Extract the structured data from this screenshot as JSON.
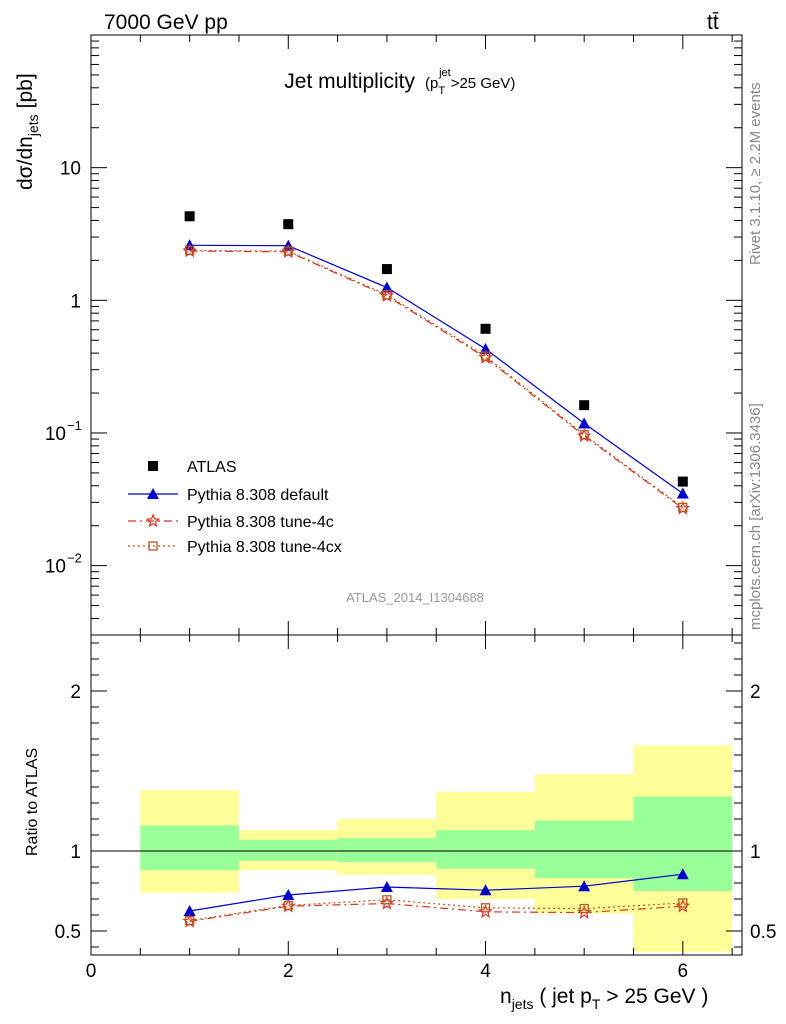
{
  "header": {
    "energy_label": "7000 GeV pp",
    "process_label": "tt̄",
    "side_version": "Rivet 3.1.10, ≥ 2.2M events",
    "side_site": "mcplots.cern.ch [arXiv:1306.3436]",
    "analysis_id": "ATLAS_2014_I1304688"
  },
  "colors": {
    "data": "#000000",
    "default": "#0000cc",
    "tune4c": "#dd3322",
    "tune4cx": "#bb5522",
    "band_inner": "#99ff99",
    "band_outer": "#ffff99"
  },
  "chart_data": [
    {
      "type": "line",
      "title": "Jet multiplicity",
      "title_sub": "(p_T^jet > 25 GeV)",
      "title_sub_parts": {
        "open": "(p",
        "sub": "T",
        "sup": "jet",
        "rest": ">25 GeV)"
      },
      "ylabel": "dσ/dn_jets [pb]",
      "ylabel_parts": {
        "main": "dσ/dn",
        "sub": "jets",
        "unit": "[pb]"
      },
      "yscale": "log",
      "ylim": [
        0.003,
        100
      ],
      "xlim": [
        0,
        6.6
      ],
      "y_tick_labels": [
        "10⁻²",
        "10⁻¹",
        "1",
        "10"
      ],
      "legend_position": "bottom-left",
      "x": [
        1,
        2,
        3,
        4,
        5,
        6
      ],
      "series": [
        {
          "name": "ATLAS",
          "key": "data",
          "marker": "square",
          "values": [
            4.3,
            3.75,
            1.72,
            0.61,
            0.162,
            0.043
          ]
        },
        {
          "name": "Pythia 8.308 default",
          "key": "default",
          "marker": "triangle",
          "line": "solid",
          "values": [
            2.6,
            2.58,
            1.25,
            0.43,
            0.118,
            0.035
          ]
        },
        {
          "name": "Pythia 8.308 tune-4c",
          "key": "tune4c",
          "marker": "star",
          "line": "dashdot",
          "values": [
            2.35,
            2.32,
            1.08,
            0.37,
            0.095,
            0.027
          ]
        },
        {
          "name": "Pythia 8.308 tune-4cx",
          "key": "tune4cx",
          "marker": "open-square",
          "line": "dotted",
          "values": [
            2.38,
            2.35,
            1.1,
            0.38,
            0.097,
            0.0275
          ]
        }
      ]
    },
    {
      "type": "line",
      "ylabel": "Ratio to ATLAS",
      "xlabel": "n_jets ( jet p_T > 25 GeV )",
      "xlabel_parts": {
        "n": "n",
        "nsub": "jets",
        "mid": " ( jet p",
        "psub": "T",
        "rest": " > 25 GeV )"
      },
      "ylim": [
        0.35,
        2.35
      ],
      "xlim": [
        0,
        6.6
      ],
      "x_tick_labels": [
        "0",
        "2",
        "4",
        "6"
      ],
      "y_tick_labels": [
        "0.5",
        "1",
        "2"
      ],
      "x": [
        1,
        2,
        3,
        4,
        5,
        6
      ],
      "bins": [
        [
          0.5,
          1.5
        ],
        [
          1.5,
          2.5
        ],
        [
          2.5,
          3.5
        ],
        [
          3.5,
          4.5
        ],
        [
          4.5,
          5.5
        ],
        [
          5.5,
          6.5
        ]
      ],
      "band_inner": [
        [
          0.88,
          1.16
        ],
        [
          0.94,
          1.07
        ],
        [
          0.93,
          1.08
        ],
        [
          0.89,
          1.13
        ],
        [
          0.83,
          1.19
        ],
        [
          0.75,
          1.34
        ]
      ],
      "band_outer": [
        [
          0.74,
          1.38
        ],
        [
          0.88,
          1.13
        ],
        [
          0.85,
          1.2
        ],
        [
          0.7,
          1.37
        ],
        [
          0.61,
          1.48
        ],
        [
          0.37,
          1.66
        ]
      ],
      "series": [
        {
          "name": "Pythia 8.308 default",
          "key": "default",
          "values": [
            0.625,
            0.725,
            0.775,
            0.755,
            0.78,
            0.855
          ]
        },
        {
          "name": "Pythia 8.308 tune-4c",
          "key": "tune4c",
          "values": [
            0.56,
            0.655,
            0.672,
            0.62,
            0.615,
            0.655
          ]
        },
        {
          "name": "Pythia 8.308 tune-4cx",
          "key": "tune4cx",
          "values": [
            0.565,
            0.66,
            0.695,
            0.645,
            0.64,
            0.675
          ]
        }
      ]
    }
  ]
}
